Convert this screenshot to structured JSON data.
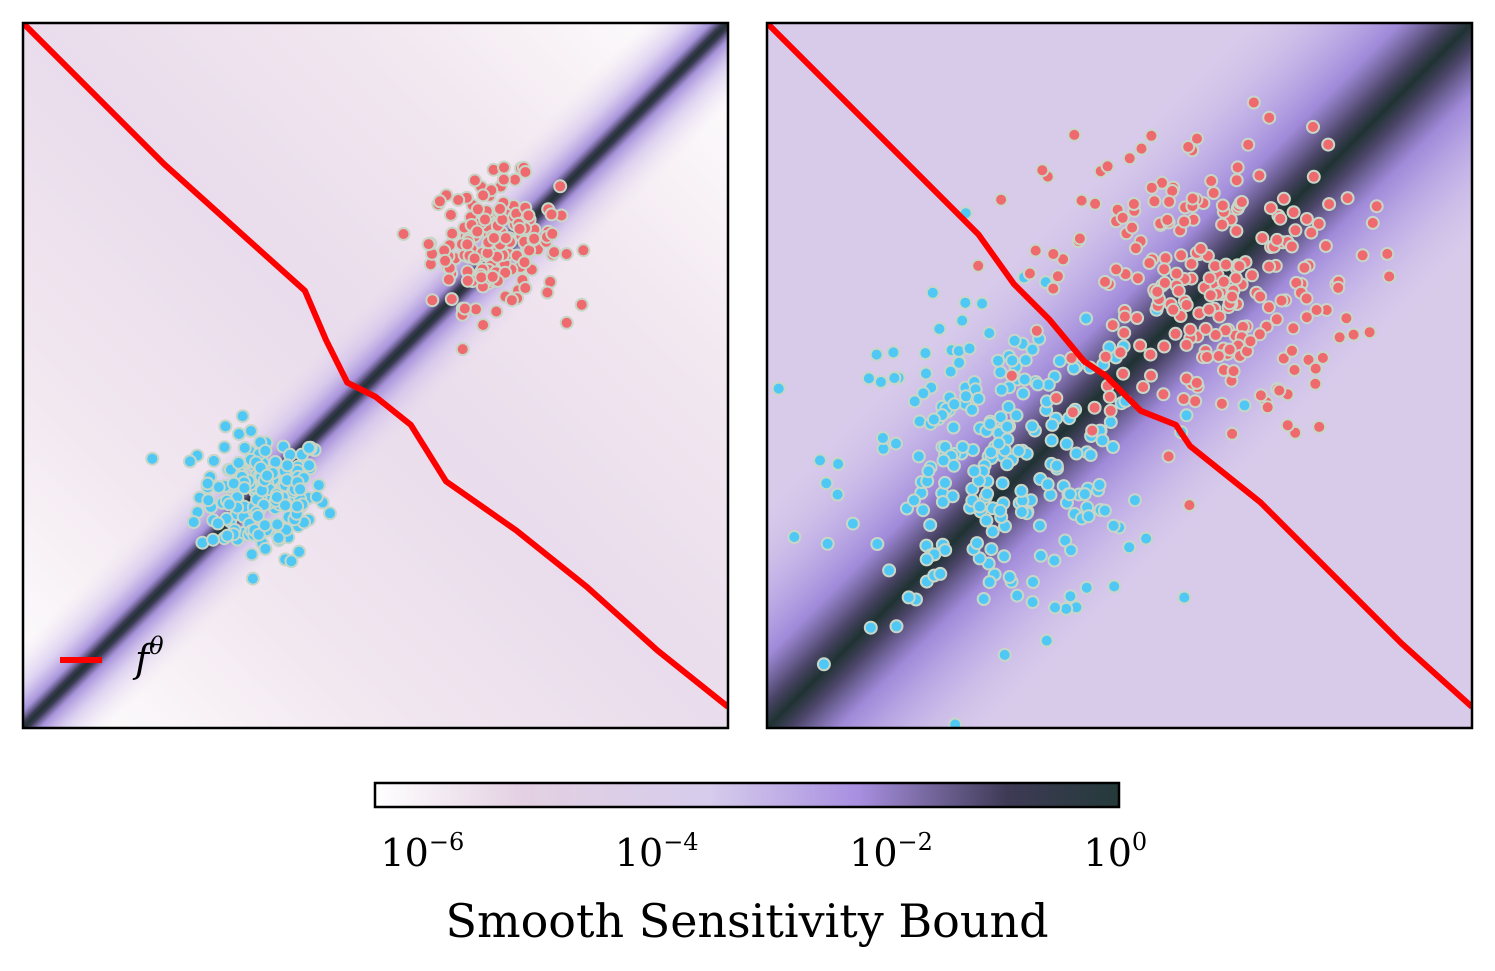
{
  "chart_data": [
    {
      "type": "scatter",
      "panel": "left",
      "description_series": [
        "class-blue",
        "class-red"
      ],
      "xlim": [
        0,
        1
      ],
      "ylim": [
        0,
        1
      ],
      "decision_boundary": {
        "label": "f",
        "label_superscript": "θ",
        "x": [
          0.0,
          0.1,
          0.2,
          0.3,
          0.4,
          0.43,
          0.46,
          0.5,
          0.55,
          0.6,
          0.7,
          0.8,
          0.9,
          1.0
        ],
        "y": [
          1.0,
          0.9,
          0.8,
          0.71,
          0.62,
          0.55,
          0.49,
          0.47,
          0.43,
          0.35,
          0.28,
          0.2,
          0.11,
          0.03
        ]
      },
      "series": [
        {
          "name": "class-blue",
          "color": "#4fc8f5",
          "center": [
            0.34,
            0.33
          ],
          "spread": 0.045,
          "count": 180
        },
        {
          "name": "class-red",
          "color": "#ee6a6f",
          "center": [
            0.67,
            0.69
          ],
          "spread": 0.045,
          "count": 180
        }
      ],
      "background": "low sensitivity far from boundary, peak along boundary"
    },
    {
      "type": "scatter",
      "panel": "right",
      "xlim": [
        0,
        1
      ],
      "ylim": [
        0,
        1
      ],
      "decision_boundary": {
        "label": "f",
        "label_superscript": "θ",
        "x": [
          0.0,
          0.1,
          0.2,
          0.3,
          0.35,
          0.4,
          0.45,
          0.48,
          0.53,
          0.58,
          0.6,
          0.7,
          0.8,
          0.9,
          1.0
        ],
        "y": [
          1.0,
          0.9,
          0.8,
          0.7,
          0.63,
          0.58,
          0.52,
          0.5,
          0.45,
          0.43,
          0.4,
          0.32,
          0.22,
          0.12,
          0.03
        ]
      },
      "series": [
        {
          "name": "class-blue",
          "color": "#4fc8f5",
          "center": [
            0.33,
            0.37
          ],
          "spread": 0.11,
          "count": 260
        },
        {
          "name": "class-red",
          "color": "#ee6a6f",
          "center": [
            0.62,
            0.63
          ],
          "spread": 0.11,
          "count": 260
        }
      ],
      "background": "moderate sensitivity everywhere, peak along boundary"
    }
  ],
  "legend": {
    "label": "f",
    "superscript": "θ",
    "line_color": "#ff0000"
  },
  "colorbar": {
    "label": "Smooth Sensitivity Bound",
    "ticks": [
      {
        "base": "10",
        "exp": "−6"
      },
      {
        "base": "10",
        "exp": "−4"
      },
      {
        "base": "10",
        "exp": "−2"
      },
      {
        "base": "10",
        "exp": "0"
      }
    ],
    "colors": [
      "#ffffff",
      "#e0cfe0",
      "#d6ccec",
      "#a88fe0",
      "#3e3a55",
      "#243a3a"
    ]
  }
}
